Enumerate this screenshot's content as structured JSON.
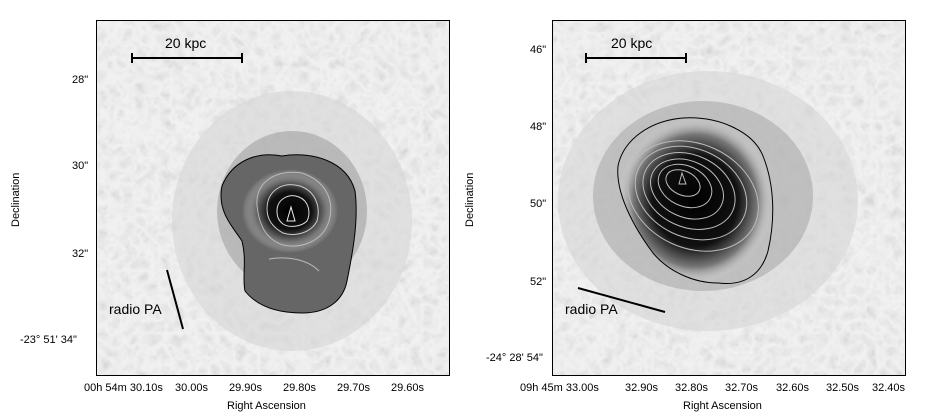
{
  "left": {
    "scalebar_label": "20 kpc",
    "radio_label": "radio PA",
    "ylabel": "Declination",
    "xlabel": "Right Ascension",
    "yticks": [
      "28\"",
      "30\"",
      "32\"",
      "-23° 51' 34\""
    ],
    "xticks": [
      "00h 54m 30.10s",
      "30.00s",
      "29.90s",
      "29.80s",
      "29.70s",
      "29.60s"
    ]
  },
  "right": {
    "scalebar_label": "20 kpc",
    "radio_label": "radio PA",
    "ylabel": "Declination",
    "xlabel": "Right Ascension",
    "yticks": [
      "46\"",
      "48\"",
      "50\"",
      "52\"",
      "-24° 28' 54\""
    ],
    "xticks": [
      "09h 45m 33.00s",
      "32.90s",
      "32.80s",
      "32.70s",
      "32.60s",
      "32.50s",
      "32.40s"
    ]
  }
}
